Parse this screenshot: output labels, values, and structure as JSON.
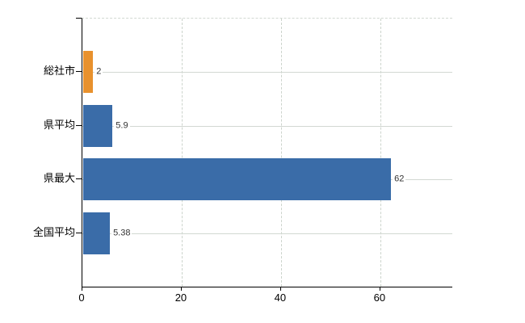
{
  "chart_data": {
    "type": "bar",
    "orientation": "horizontal",
    "title": "",
    "xlabel": "",
    "ylabel": "",
    "categories": [
      "総社市",
      "県平均",
      "県最大",
      "全国平均"
    ],
    "values": [
      2,
      5.9,
      62,
      5.38
    ],
    "value_labels": [
      "2",
      "5.9",
      "62",
      "5.38"
    ],
    "bar_colors": [
      "#e8912d",
      "#3a6ca8",
      "#3a6ca8",
      "#3a6ca8"
    ],
    "xticks": [
      0,
      20,
      40,
      60
    ],
    "xtick_labels": [
      "0",
      "20",
      "40",
      "60"
    ],
    "xlim": [
      0,
      74.5
    ],
    "grid": true,
    "legend": false,
    "colors": {
      "axis": "#000000",
      "gridline": "#ccd4cc",
      "row_gridline": "#d2d8d2",
      "background": "#ffffff",
      "value_text": "#333333",
      "category_text": "#000000"
    }
  }
}
